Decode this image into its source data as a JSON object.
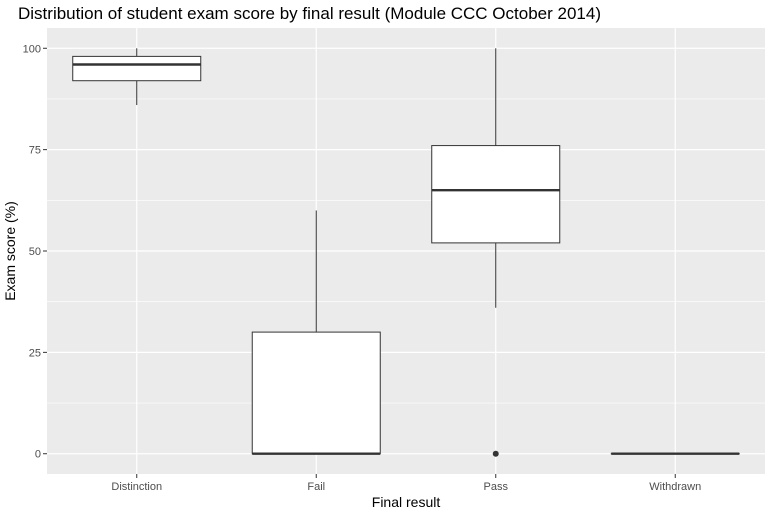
{
  "chart_data": {
    "type": "boxplot",
    "title": "Distribution of student exam score by final result (Module CCC October 2014)",
    "xlabel": "Final result",
    "ylabel": "Exam score (%)",
    "ylim": [
      -5,
      105
    ],
    "y_ticks": [
      0,
      25,
      50,
      75,
      100
    ],
    "grid": true,
    "categories": [
      "Distinction",
      "Fail",
      "Pass",
      "Withdrawn"
    ],
    "boxes": [
      {
        "category": "Distinction",
        "whisker_low": 86,
        "q1": 92,
        "median": 96,
        "q3": 98,
        "whisker_high": 100,
        "outliers": []
      },
      {
        "category": "Fail",
        "whisker_low": 0,
        "q1": 0,
        "median": 0,
        "q3": 30,
        "whisker_high": 60,
        "outliers": []
      },
      {
        "category": "Pass",
        "whisker_low": 36,
        "q1": 52,
        "median": 65,
        "q3": 76,
        "whisker_high": 100,
        "outliers": [
          0
        ]
      },
      {
        "category": "Withdrawn",
        "whisker_low": 0,
        "q1": 0,
        "median": 0,
        "q3": 0,
        "whisker_high": 0,
        "outliers": []
      }
    ],
    "colors": {
      "panel": "#ebebeb",
      "grid_major": "#ffffff",
      "box_fill": "#ffffff",
      "box_line": "#333333"
    }
  }
}
